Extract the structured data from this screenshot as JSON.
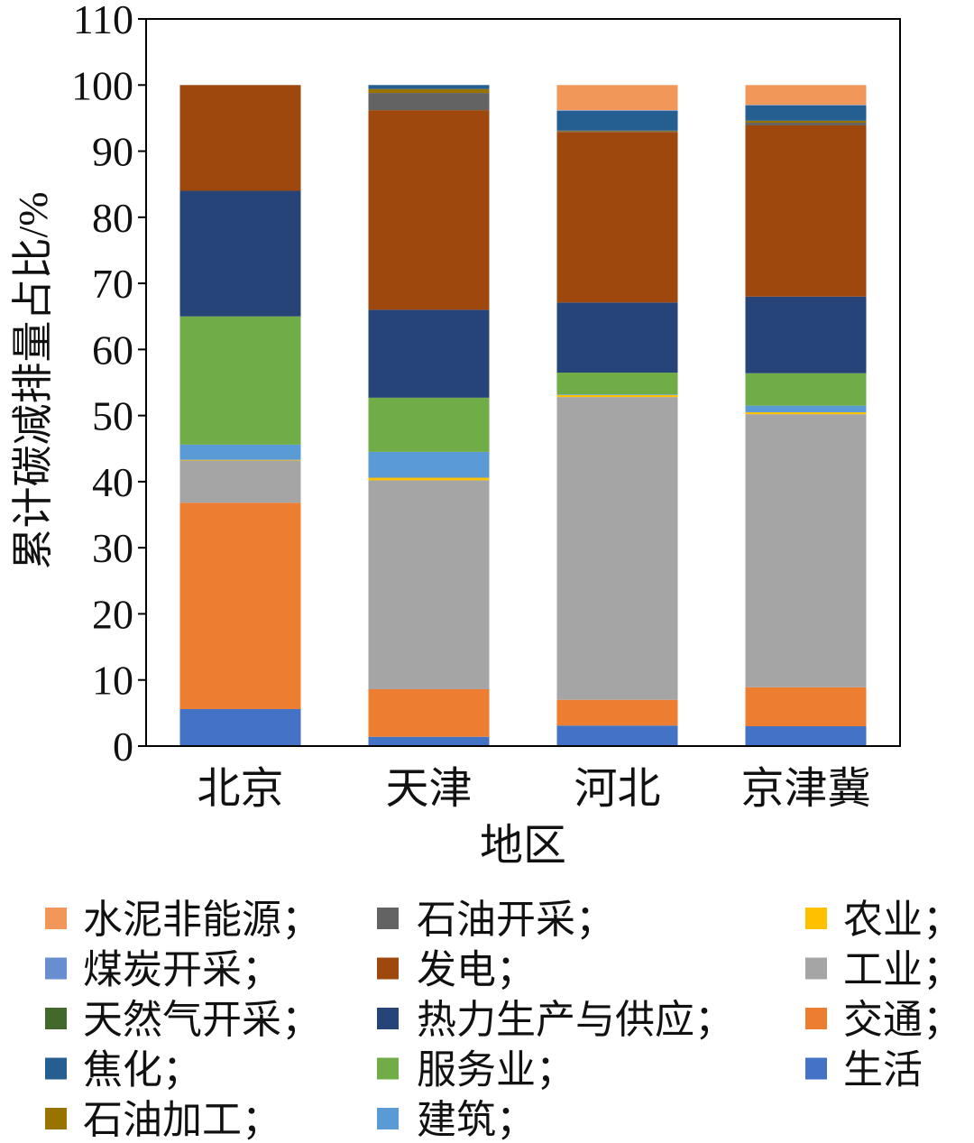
{
  "chart_data": {
    "type": "bar",
    "stacked": true,
    "categories": [
      "北京",
      "天津",
      "河北",
      "京津冀"
    ],
    "xlabel": "地区",
    "ylabel": "累计碳减排量占比/%",
    "ylim": [
      0,
      110
    ],
    "yticks": [
      0,
      10,
      20,
      30,
      40,
      50,
      60,
      70,
      80,
      90,
      100,
      110
    ],
    "grid": false,
    "legend": "bottom",
    "series": [
      {
        "name": "生活",
        "color": "#4472C4",
        "values": [
          5.6,
          1.4,
          3.1,
          3.0
        ]
      },
      {
        "name": "交通",
        "legend_suffix": "；",
        "color": "#ED7D31",
        "values": [
          31.2,
          7.2,
          3.9,
          5.9
        ]
      },
      {
        "name": "工业",
        "legend_suffix": "；",
        "color": "#A5A5A5",
        "values": [
          6.4,
          31.6,
          45.8,
          41.3
        ]
      },
      {
        "name": "农业",
        "legend_suffix": "；",
        "color": "#FFC000",
        "values": [
          0.1,
          0.4,
          0.3,
          0.3
        ]
      },
      {
        "name": "建筑",
        "legend_suffix": "；",
        "color": "#5B9BD5",
        "values": [
          2.3,
          3.9,
          0.1,
          1.0
        ]
      },
      {
        "name": "服务业",
        "legend_suffix": "；",
        "color": "#70AD47",
        "values": [
          19.4,
          8.2,
          3.3,
          4.9
        ]
      },
      {
        "name": "热力生产与供应",
        "legend_suffix": "；",
        "color": "#264478",
        "values": [
          19.0,
          13.3,
          10.6,
          11.6
        ]
      },
      {
        "name": "发电",
        "legend_suffix": "；",
        "color": "#9E480E",
        "values": [
          16.0,
          30.2,
          25.8,
          25.9
        ]
      },
      {
        "name": "石油开采",
        "legend_suffix": "；",
        "color": "#636363",
        "values": [
          0,
          2.6,
          0.1,
          0.4
        ]
      },
      {
        "name": "石油加工",
        "legend_suffix": "；",
        "color": "#997300",
        "values": [
          0,
          0.6,
          0.1,
          0.3
        ]
      },
      {
        "name": "焦化",
        "legend_suffix": "；",
        "color": "#255E91",
        "values": [
          0,
          0.6,
          3.0,
          2.3
        ]
      },
      {
        "name": "天然气开采",
        "legend_suffix": "；",
        "color": "#43682B",
        "values": [
          0,
          0,
          0,
          0
        ]
      },
      {
        "name": "煤炭开采",
        "legend_suffix": "；",
        "color": "#698ED0",
        "values": [
          0,
          0,
          0.1,
          0.1
        ]
      },
      {
        "name": "水泥非能源",
        "legend_suffix": "；",
        "color": "#F1975A",
        "values": [
          0,
          0,
          3.8,
          3.0
        ]
      }
    ]
  }
}
